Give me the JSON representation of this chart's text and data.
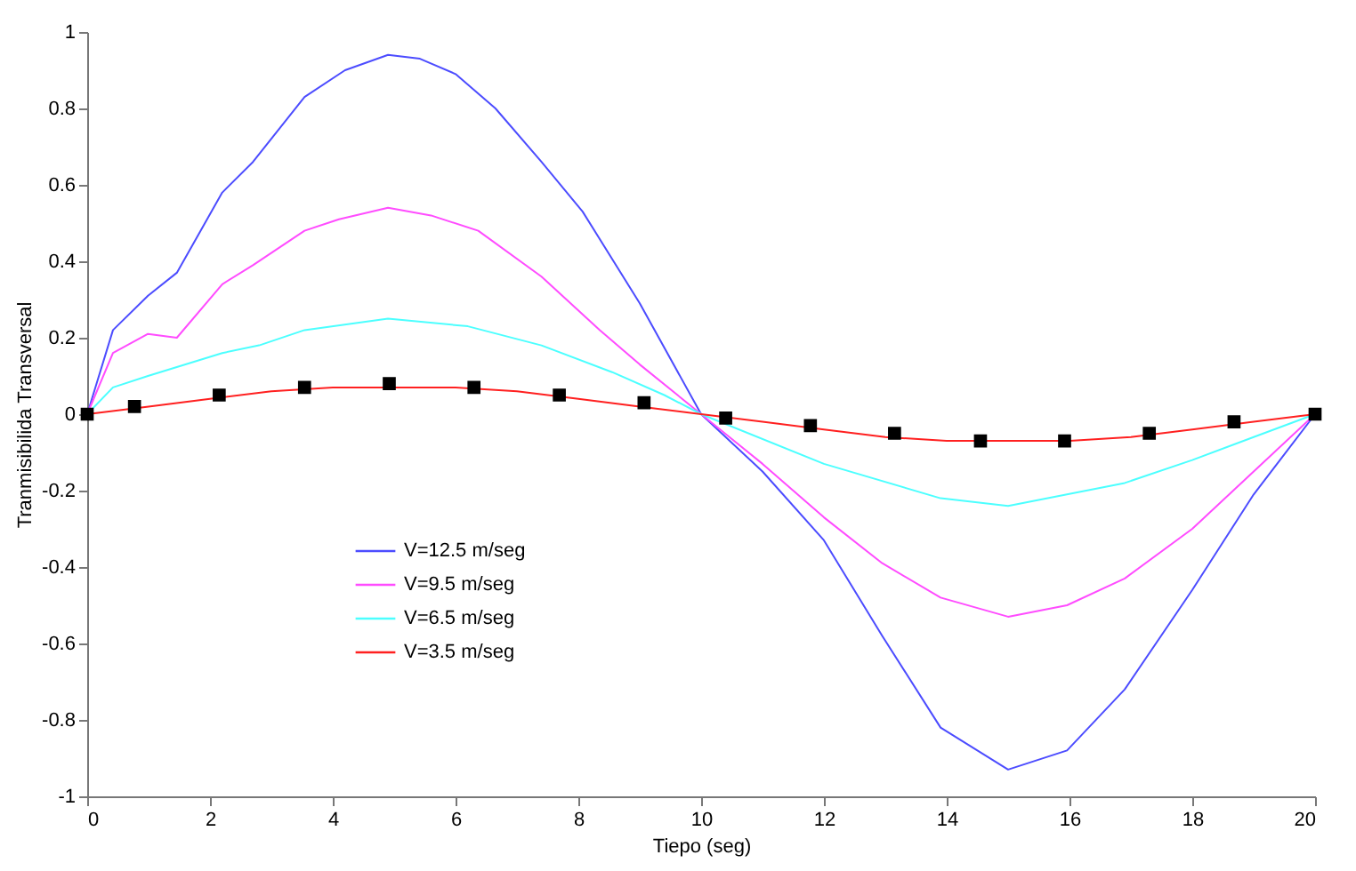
{
  "chart_data": {
    "type": "line",
    "xlabel": "Tiepo (seg)",
    "ylabel": "Tranmisibilida Transversal",
    "xlim": [
      0,
      20
    ],
    "ylim": [
      -1,
      1
    ],
    "xticks": [
      0,
      2,
      4,
      6,
      8,
      10,
      12,
      14,
      16,
      18,
      20
    ],
    "yticks": [
      -1,
      -0.8,
      -0.6,
      -0.4,
      -0.2,
      0,
      0.2,
      0.4,
      0.6,
      0.8,
      1
    ],
    "grid": false,
    "legend": "left",
    "marker": "none",
    "line_style": "solid",
    "series": [
      {
        "name": "V=12.5 m/seg",
        "color": "#4c4cff",
        "x": [
          0,
          0.42,
          0.99,
          1.46,
          2.2,
          2.7,
          3.54,
          4.2,
          4.9,
          5.42,
          6,
          6.65,
          7.4,
          8.07,
          9,
          10,
          11,
          12,
          12.95,
          13.9,
          15,
          15.96,
          16.9,
          18,
          19,
          20
        ],
        "values": [
          0,
          0.22,
          0.31,
          0.37,
          0.58,
          0.66,
          0.83,
          0.9,
          0.94,
          0.93,
          0.89,
          0.8,
          0.66,
          0.53,
          0.29,
          0,
          -0.15,
          -0.33,
          -0.58,
          -0.82,
          -0.93,
          -0.88,
          -0.72,
          -0.46,
          -0.21,
          0
        ]
      },
      {
        "name": "V=9.5 m/seg",
        "color": "#ff4cff",
        "x": [
          0,
          0.42,
          0.99,
          1.46,
          2.2,
          2.7,
          3.54,
          4.1,
          4.9,
          5.6,
          6.37,
          7.4,
          8.35,
          9,
          10,
          11,
          12,
          12.95,
          13.9,
          15,
          15.96,
          16.9,
          18,
          19,
          20
        ],
        "values": [
          0,
          0.16,
          0.21,
          0.2,
          0.34,
          0.39,
          0.48,
          0.51,
          0.54,
          0.52,
          0.48,
          0.36,
          0.22,
          0.13,
          0,
          -0.13,
          -0.27,
          -0.39,
          -0.48,
          -0.53,
          -0.5,
          -0.43,
          -0.3,
          -0.15,
          0
        ]
      },
      {
        "name": "V=6.5 m/seg",
        "color": "#4cffff",
        "x": [
          0,
          0.42,
          0.99,
          2.2,
          2.8,
          3.54,
          4.9,
          6.2,
          7.4,
          8.55,
          9.4,
          10,
          12,
          13.9,
          15,
          16.9,
          18,
          19,
          20
        ],
        "values": [
          0,
          0.07,
          0.1,
          0.16,
          0.18,
          0.22,
          0.25,
          0.23,
          0.18,
          0.11,
          0.05,
          0,
          -0.13,
          -0.22,
          -0.24,
          -0.18,
          -0.12,
          -0.06,
          0
        ]
      },
      {
        "name": "V=3.5 m/seg",
        "color": "#ff2020",
        "x": [
          0,
          1,
          2,
          3,
          4,
          5,
          6,
          7,
          8,
          9,
          10,
          11,
          12,
          13,
          14,
          15,
          16,
          17,
          18,
          19,
          20
        ],
        "values": [
          0,
          0.02,
          0.04,
          0.06,
          0.07,
          0.07,
          0.07,
          0.06,
          0.04,
          0.02,
          0,
          -0.02,
          -0.04,
          -0.06,
          -0.07,
          -0.07,
          -0.07,
          -0.06,
          -0.04,
          -0.02,
          0
        ]
      },
      {
        "type": "scatter",
        "marker": "square",
        "color": "#000000",
        "x": [
          0,
          0.77,
          2.15,
          3.54,
          4.92,
          6.3,
          7.69,
          9.07,
          10.4,
          11.78,
          13.15,
          14.55,
          15.92,
          17.3,
          18.68,
          20
        ],
        "values": [
          0,
          0.02,
          0.05,
          0.07,
          0.08,
          0.07,
          0.05,
          0.03,
          -0.01,
          -0.03,
          -0.05,
          -0.07,
          -0.07,
          -0.05,
          -0.02,
          0
        ]
      }
    ]
  }
}
